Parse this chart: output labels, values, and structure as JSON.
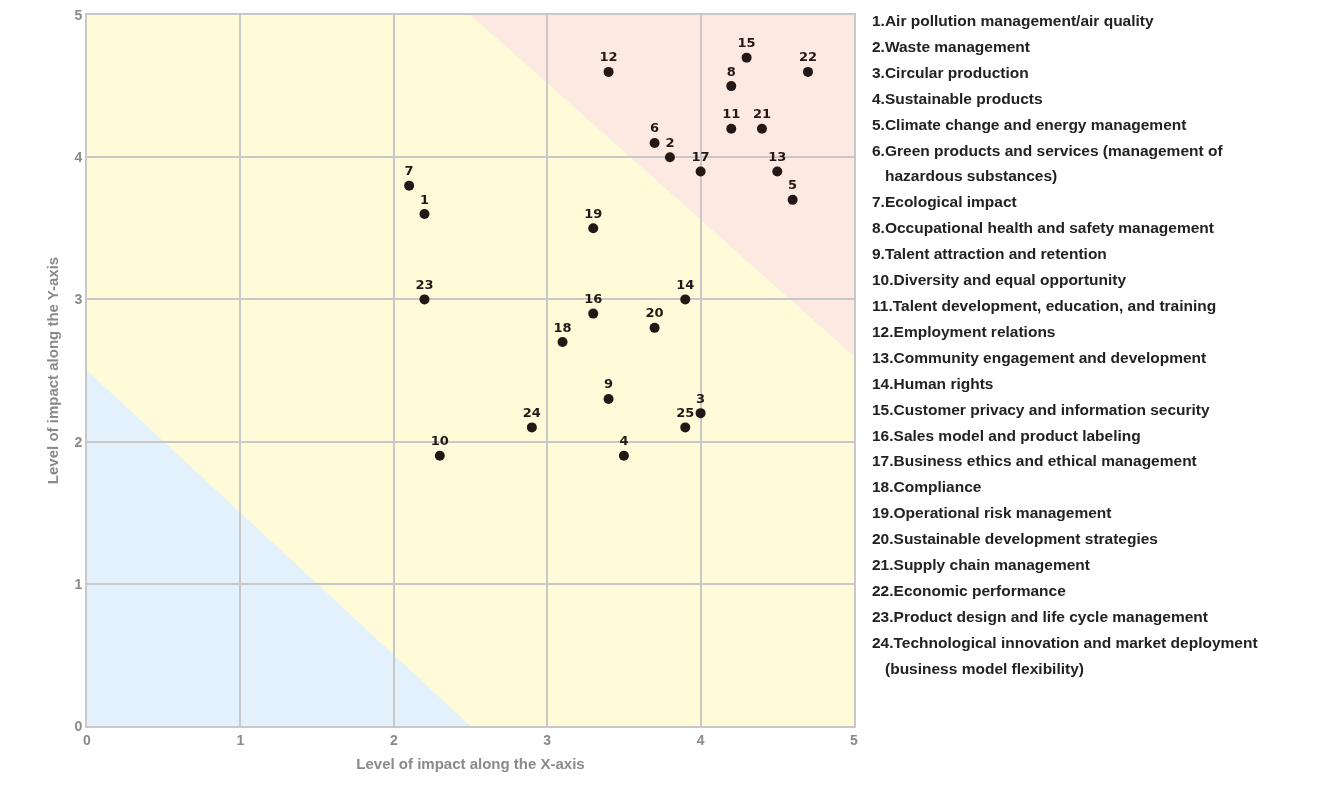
{
  "chart_data": {
    "type": "scatter",
    "xlabel": "Level of impact along the X-axis",
    "ylabel": "Level of impact along the Y-axis",
    "series": [
      {
        "name": "1",
        "color": "#231815",
        "x": [
          2.2
        ],
        "values": [
          3.6
        ]
      },
      {
        "name": "2",
        "color": "#231815",
        "x": [
          3.8
        ],
        "values": [
          4.0
        ]
      },
      {
        "name": "3",
        "color": "#231815",
        "x": [
          4.0
        ],
        "values": [
          2.2
        ]
      },
      {
        "name": "4",
        "color": "#231815",
        "x": [
          3.5
        ],
        "values": [
          1.9
        ]
      },
      {
        "name": "5",
        "color": "#231815",
        "x": [
          4.6
        ],
        "values": [
          3.7
        ]
      },
      {
        "name": "6",
        "color": "#231815",
        "x": [
          3.7
        ],
        "values": [
          4.1
        ]
      },
      {
        "name": "7",
        "color": "#231815",
        "x": [
          2.1
        ],
        "values": [
          3.8
        ]
      },
      {
        "name": "8",
        "color": "#231815",
        "x": [
          4.2
        ],
        "values": [
          4.5
        ]
      },
      {
        "name": "9",
        "color": "#231815",
        "x": [
          3.4
        ],
        "values": [
          2.3
        ]
      },
      {
        "name": "10",
        "color": "#231815",
        "x": [
          2.3
        ],
        "values": [
          1.9
        ]
      },
      {
        "name": "11",
        "color": "#231815",
        "x": [
          4.2
        ],
        "values": [
          4.2
        ]
      },
      {
        "name": "12",
        "color": "#231815",
        "x": [
          3.4
        ],
        "values": [
          4.6
        ]
      },
      {
        "name": "13",
        "color": "#231815",
        "x": [
          4.5
        ],
        "values": [
          3.9
        ]
      },
      {
        "name": "14",
        "color": "#231815",
        "x": [
          3.9
        ],
        "values": [
          3.0
        ]
      },
      {
        "name": "15",
        "color": "#231815",
        "x": [
          4.3
        ],
        "values": [
          4.7
        ]
      },
      {
        "name": "16",
        "color": "#231815",
        "x": [
          3.3
        ],
        "values": [
          2.9
        ]
      },
      {
        "name": "17",
        "color": "#231815",
        "x": [
          4.0
        ],
        "values": [
          3.9
        ]
      },
      {
        "name": "18",
        "color": "#231815",
        "x": [
          3.1
        ],
        "values": [
          2.7
        ]
      },
      {
        "name": "19",
        "color": "#231815",
        "x": [
          3.3
        ],
        "values": [
          3.5
        ]
      },
      {
        "name": "20",
        "color": "#231815",
        "x": [
          3.7
        ],
        "values": [
          2.8
        ]
      },
      {
        "name": "21",
        "color": "#231815",
        "x": [
          4.4
        ],
        "values": [
          4.2
        ]
      },
      {
        "name": "22",
        "color": "#231815",
        "x": [
          4.7
        ],
        "values": [
          4.6
        ]
      },
      {
        "name": "23",
        "color": "#231815",
        "x": [
          2.2
        ],
        "values": [
          3.0
        ]
      },
      {
        "name": "24",
        "color": "#231815",
        "x": [
          2.9
        ],
        "values": [
          2.1
        ]
      },
      {
        "name": "25",
        "color": "#231815",
        "x": [
          3.9
        ],
        "values": [
          2.1
        ]
      }
    ],
    "marker": "circle",
    "xlim": [
      0,
      5
    ],
    "xticks": [
      0,
      1,
      2,
      3,
      4,
      5
    ],
    "ylim": [
      0,
      5
    ],
    "yticks": [
      0,
      1,
      2,
      3,
      4,
      5
    ],
    "grid": true,
    "annotations": [
      "1.Air pollution management/air quality",
      "2.Waste management",
      "3.Circular production",
      "4.Sustainable products",
      "5.Climate change and energy management",
      "6.Green products and services (management of hazardous substances)",
      "7.Ecological impact",
      "8.Occupational health and safety management",
      "9.Talent attraction and retention",
      "10.Diversity and equal opportunity",
      "11.Talent development, education, and training",
      "12.Employment relations",
      "13.Community engagement and development",
      "14.Human rights",
      "15.Customer privacy and information security",
      "16.Sales model and product labeling",
      "17.Business ethics and ethical management",
      "18.Compliance",
      "19.Operational risk management",
      "20.Sustainable development strategies",
      "21.Supply chain management",
      "22.Economic performance",
      "23.Product design and life cycle management",
      "24.Technological innovation and market deployment (business model flexibility)"
    ]
  }
}
